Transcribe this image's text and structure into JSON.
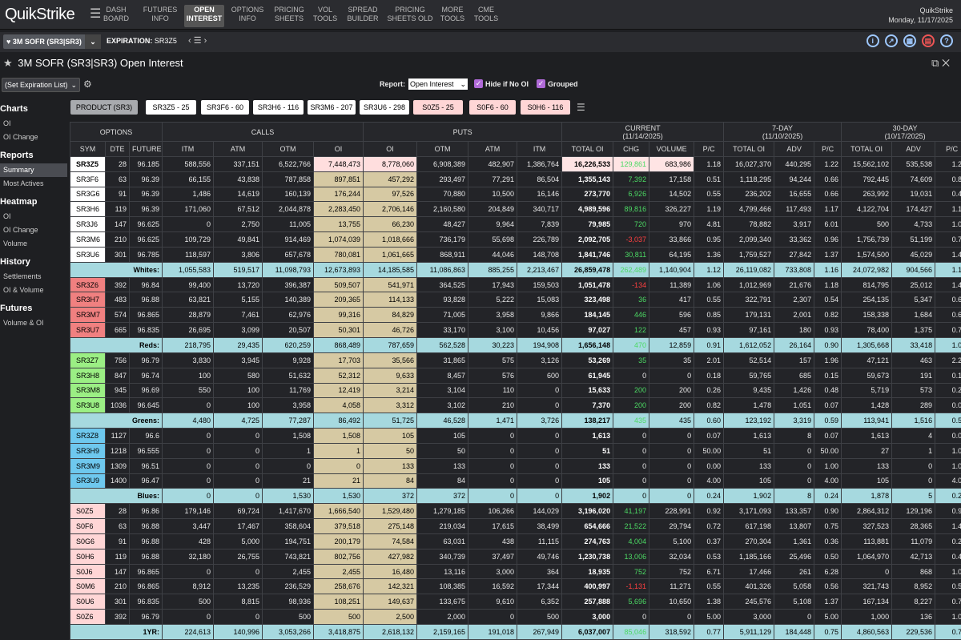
{
  "app": {
    "logo": "QuikStrike",
    "brand": "QuikStrike",
    "date": "Monday, 11/17/2025"
  },
  "nav": [
    {
      "id": "dash",
      "l1": "DASH",
      "l2": "BOARD"
    },
    {
      "id": "futures",
      "l1": "FUTURES",
      "l2": "INFO"
    },
    {
      "id": "oi",
      "l1": "OPEN",
      "l2": "INTEREST",
      "active": true
    },
    {
      "id": "options",
      "l1": "OPTIONS",
      "l2": "INFO"
    },
    {
      "id": "pricing",
      "l1": "PRICING",
      "l2": "SHEETS"
    },
    {
      "id": "vol",
      "l1": "VOL",
      "l2": "TOOLS"
    },
    {
      "id": "spread",
      "l1": "SPREAD",
      "l2": "BUILDER"
    },
    {
      "id": "pricingold",
      "l1": "PRICING",
      "l2": "SHEETS OLD"
    },
    {
      "id": "more",
      "l1": "MORE",
      "l2": "TOOLS"
    },
    {
      "id": "cme",
      "l1": "CME",
      "l2": "TOOLS"
    }
  ],
  "product": "3M SOFR (SR3|SR3)",
  "expiration_label": "EXPIRATION:",
  "expiration_value": "SR3Z5",
  "title": "3M SOFR (SR3|SR3) Open Interest",
  "controls": {
    "set_exp": "(Set Expiration List)",
    "report_label": "Report:",
    "report_value": "Open Interest",
    "hide_label": "Hide if No OI",
    "grouped_label": "Grouped"
  },
  "sidebar": [
    {
      "head": "Charts",
      "items": [
        "OI",
        "OI Change"
      ]
    },
    {
      "head": "Reports",
      "items": [
        "Summary",
        "Most Actives"
      ],
      "active": "Summary"
    },
    {
      "head": "Heatmap",
      "items": [
        "OI",
        "OI Change",
        "Volume"
      ]
    },
    {
      "head": "History",
      "items": [
        "Settlements",
        "OI & Volume"
      ]
    },
    {
      "head": "Futures",
      "items": [
        "Volume & OI"
      ]
    }
  ],
  "chips": [
    {
      "label": "PRODUCT (SR3)",
      "bg": "#a8aaae"
    },
    {
      "label": "SR3Z5 - 25",
      "bg": "#ffffff"
    },
    {
      "label": "SR3F6 - 60",
      "bg": "#ffffff"
    },
    {
      "label": "SR3H6 - 116",
      "bg": "#ffffff"
    },
    {
      "label": "SR3M6 - 207",
      "bg": "#ffffff"
    },
    {
      "label": "SR3U6 - 298",
      "bg": "#ffffff"
    },
    {
      "label": "S0Z5 - 25",
      "bg": "#ffd6d6"
    },
    {
      "label": "S0F6 - 60",
      "bg": "#ffd6d6"
    },
    {
      "label": "S0H6 - 116",
      "bg": "#ffd6d6"
    }
  ],
  "table": {
    "groups": {
      "options": "OPTIONS",
      "calls": "CALLS",
      "puts": "PUTS",
      "current": "CURRENT",
      "current_date": "(11/14/2025)",
      "d7": "7-DAY",
      "d7_date": "(11/10/2025)",
      "d30": "30-DAY",
      "d30_date": "(10/17/2025)"
    },
    "cols": [
      "SYM",
      "DTE",
      "FUTURE",
      "ITM",
      "ATM",
      "OTM",
      "OI",
      "OI",
      "OTM",
      "ATM",
      "ITM",
      "TOTAL OI",
      "CHG",
      "VOLUME",
      "P/C",
      "TOTAL OI",
      "ADV",
      "P/C",
      "TOTAL OI",
      "ADV",
      "P/C"
    ],
    "rows": [
      {
        "t": "d",
        "c": "#ffffff",
        "v": [
          "SR3Z5",
          "28",
          "96.185",
          "588,556",
          "337,151",
          "6,522,766",
          "7,448,473",
          "8,778,060",
          "6,908,389",
          "482,907",
          "1,386,764",
          "16,226,533",
          "129,861",
          "683,986",
          "1.18",
          "16,027,370",
          "440,295",
          "1.22",
          "15,562,102",
          "535,538",
          "1.21"
        ],
        "first": true
      },
      {
        "t": "d",
        "c": "#ffffff",
        "v": [
          "SR3F6",
          "63",
          "96.39",
          "66,155",
          "43,838",
          "787,858",
          "897,851",
          "457,292",
          "293,497",
          "77,291",
          "86,504",
          "1,355,143",
          "7,392",
          "17,158",
          "0.51",
          "1,118,295",
          "94,244",
          "0.66",
          "792,445",
          "74,609",
          "0.88"
        ]
      },
      {
        "t": "d",
        "c": "#ffffff",
        "v": [
          "SR3G6",
          "91",
          "96.39",
          "1,486",
          "14,619",
          "160,139",
          "176,244",
          "97,526",
          "70,880",
          "10,500",
          "16,146",
          "273,770",
          "6,926",
          "14,502",
          "0.55",
          "236,202",
          "16,655",
          "0.66",
          "263,992",
          "19,031",
          "0.47"
        ]
      },
      {
        "t": "d",
        "c": "#ffffff",
        "v": [
          "SR3H6",
          "119",
          "96.39",
          "171,060",
          "67,512",
          "2,044,878",
          "2,283,450",
          "2,706,146",
          "2,160,580",
          "204,849",
          "340,717",
          "4,989,596",
          "89,816",
          "326,227",
          "1.19",
          "4,799,466",
          "117,493",
          "1.17",
          "4,122,704",
          "174,427",
          "1.16"
        ]
      },
      {
        "t": "d",
        "c": "#ffffff",
        "v": [
          "SR3J6",
          "147",
          "96.625",
          "0",
          "2,750",
          "11,005",
          "13,755",
          "66,230",
          "48,427",
          "9,964",
          "7,839",
          "79,985",
          "720",
          "970",
          "4.81",
          "78,882",
          "3,917",
          "6.01",
          "500",
          "4,733",
          "1.00"
        ]
      },
      {
        "t": "d",
        "c": "#ffffff",
        "v": [
          "SR3M6",
          "210",
          "96.625",
          "109,729",
          "49,841",
          "914,469",
          "1,074,039",
          "1,018,666",
          "736,179",
          "55,698",
          "226,789",
          "2,092,705",
          "-3,037",
          "33,866",
          "0.95",
          "2,099,340",
          "33,362",
          "0.96",
          "1,756,739",
          "51,199",
          "0.74"
        ]
      },
      {
        "t": "d",
        "c": "#ffffff",
        "v": [
          "SR3U6",
          "301",
          "96.785",
          "118,597",
          "3,806",
          "657,678",
          "780,081",
          "1,061,665",
          "868,911",
          "44,046",
          "148,708",
          "1,841,746",
          "30,811",
          "64,195",
          "1.36",
          "1,759,527",
          "27,842",
          "1.37",
          "1,574,500",
          "45,029",
          "1.42"
        ]
      },
      {
        "t": "s",
        "label": "Whites:",
        "v": [
          "1,055,583",
          "519,517",
          "11,098,793",
          "12,673,893",
          "14,185,585",
          "11,086,863",
          "885,255",
          "2,213,467",
          "26,859,478",
          "262,489",
          "1,140,904",
          "1.12",
          "26,119,082",
          "733,808",
          "1.16",
          "24,072,982",
          "904,566",
          "1.15"
        ]
      },
      {
        "t": "d",
        "c": "#f08080",
        "v": [
          "SR3Z6",
          "392",
          "96.84",
          "99,400",
          "13,720",
          "396,387",
          "509,507",
          "541,971",
          "364,525",
          "17,943",
          "159,503",
          "1,051,478",
          "-134",
          "11,389",
          "1.06",
          "1,012,969",
          "21,676",
          "1.18",
          "814,795",
          "25,012",
          "1.40"
        ]
      },
      {
        "t": "d",
        "c": "#f08080",
        "v": [
          "SR3H7",
          "483",
          "96.88",
          "63,821",
          "5,155",
          "140,389",
          "209,365",
          "114,133",
          "93,828",
          "5,222",
          "15,083",
          "323,498",
          "36",
          "417",
          "0.55",
          "322,791",
          "2,307",
          "0.54",
          "254,135",
          "5,347",
          "0.68"
        ]
      },
      {
        "t": "d",
        "c": "#f08080",
        "v": [
          "SR3M7",
          "574",
          "96.865",
          "28,879",
          "7,461",
          "62,976",
          "99,316",
          "84,829",
          "71,005",
          "3,958",
          "9,866",
          "184,145",
          "446",
          "596",
          "0.85",
          "179,131",
          "2,001",
          "0.82",
          "158,338",
          "1,684",
          "0.68"
        ]
      },
      {
        "t": "d",
        "c": "#f08080",
        "v": [
          "SR3U7",
          "665",
          "96.835",
          "26,695",
          "3,099",
          "20,507",
          "50,301",
          "46,726",
          "33,170",
          "3,100",
          "10,456",
          "97,027",
          "122",
          "457",
          "0.93",
          "97,161",
          "180",
          "0.93",
          "78,400",
          "1,375",
          "0.77"
        ]
      },
      {
        "t": "s",
        "label": "Reds:",
        "v": [
          "218,795",
          "29,435",
          "620,259",
          "868,489",
          "787,659",
          "562,528",
          "30,223",
          "194,908",
          "1,656,148",
          "470",
          "12,859",
          "0.91",
          "1,612,052",
          "26,164",
          "0.90",
          "1,305,668",
          "33,418",
          "1.07"
        ]
      },
      {
        "t": "d",
        "c": "#9bef84",
        "v": [
          "SR3Z7",
          "756",
          "96.79",
          "3,830",
          "3,945",
          "9,928",
          "17,703",
          "35,566",
          "31,865",
          "575",
          "3,126",
          "53,269",
          "35",
          "35",
          "2.01",
          "52,514",
          "157",
          "1.96",
          "47,121",
          "463",
          "2.24"
        ]
      },
      {
        "t": "d",
        "c": "#9bef84",
        "v": [
          "SR3H8",
          "847",
          "96.74",
          "100",
          "580",
          "51,632",
          "52,312",
          "9,633",
          "8,457",
          "576",
          "600",
          "61,945",
          "0",
          "0",
          "0.18",
          "59,765",
          "685",
          "0.15",
          "59,673",
          "191",
          "0.15"
        ]
      },
      {
        "t": "d",
        "c": "#9bef84",
        "v": [
          "SR3M8",
          "945",
          "96.69",
          "550",
          "100",
          "11,769",
          "12,419",
          "3,214",
          "3,104",
          "110",
          "0",
          "15,633",
          "200",
          "200",
          "0.26",
          "9,435",
          "1,426",
          "0.48",
          "5,719",
          "573",
          "0.23"
        ]
      },
      {
        "t": "d",
        "c": "#9bef84",
        "v": [
          "SR3U8",
          "1036",
          "96.645",
          "0",
          "100",
          "3,958",
          "4,058",
          "3,312",
          "3,102",
          "210",
          "0",
          "7,370",
          "200",
          "200",
          "0.82",
          "1,478",
          "1,051",
          "0.07",
          "1,428",
          "289",
          "0.08"
        ]
      },
      {
        "t": "s",
        "label": "Greens:",
        "v": [
          "4,480",
          "4,725",
          "77,287",
          "86,492",
          "51,725",
          "46,528",
          "1,471",
          "3,726",
          "138,217",
          "435",
          "435",
          "0.60",
          "123,192",
          "3,319",
          "0.59",
          "113,941",
          "1,516",
          "0.57"
        ]
      },
      {
        "t": "d",
        "c": "#6ec8ee",
        "v": [
          "SR3Z8",
          "1127",
          "96.6",
          "0",
          "0",
          "1,508",
          "1,508",
          "105",
          "105",
          "0",
          "0",
          "1,613",
          "0",
          "0",
          "0.07",
          "1,613",
          "8",
          "0.07",
          "1,613",
          "4",
          "0.07"
        ]
      },
      {
        "t": "d",
        "c": "#6ec8ee",
        "v": [
          "SR3H9",
          "1218",
          "96.555",
          "0",
          "0",
          "1",
          "1",
          "50",
          "50",
          "0",
          "0",
          "51",
          "0",
          "0",
          "50.00",
          "51",
          "0",
          "50.00",
          "27",
          "1",
          "1.00"
        ]
      },
      {
        "t": "d",
        "c": "#6ec8ee",
        "v": [
          "SR3M9",
          "1309",
          "96.51",
          "0",
          "0",
          "0",
          "0",
          "133",
          "133",
          "0",
          "0",
          "133",
          "0",
          "0",
          "0.00",
          "133",
          "0",
          "1.00",
          "133",
          "0",
          "1.00"
        ]
      },
      {
        "t": "d",
        "c": "#6ec8ee",
        "v": [
          "SR3U9",
          "1400",
          "96.47",
          "0",
          "0",
          "21",
          "21",
          "84",
          "84",
          "0",
          "0",
          "105",
          "0",
          "0",
          "4.00",
          "105",
          "0",
          "4.00",
          "105",
          "0",
          "4.00"
        ]
      },
      {
        "t": "s",
        "label": "Blues:",
        "v": [
          "0",
          "0",
          "1,530",
          "1,530",
          "372",
          "372",
          "0",
          "0",
          "1,902",
          "0",
          "0",
          "0.24",
          "1,902",
          "8",
          "0.24",
          "1,878",
          "5",
          "0.23"
        ]
      },
      {
        "t": "d",
        "c": "#ffd6d6",
        "v": [
          "S0Z5",
          "28",
          "96.86",
          "179,146",
          "69,724",
          "1,417,670",
          "1,666,540",
          "1,529,480",
          "1,279,185",
          "106,266",
          "144,029",
          "3,196,020",
          "41,197",
          "228,991",
          "0.92",
          "3,171,093",
          "133,357",
          "0.90",
          "2,864,312",
          "129,196",
          "0.95"
        ]
      },
      {
        "t": "d",
        "c": "#ffd6d6",
        "v": [
          "S0F6",
          "63",
          "96.88",
          "3,447",
          "17,467",
          "358,604",
          "379,518",
          "275,148",
          "219,034",
          "17,615",
          "38,499",
          "654,666",
          "21,522",
          "29,794",
          "0.72",
          "617,198",
          "13,807",
          "0.75",
          "327,523",
          "28,365",
          "1.44"
        ]
      },
      {
        "t": "d",
        "c": "#ffd6d6",
        "v": [
          "S0G6",
          "91",
          "96.88",
          "428",
          "5,000",
          "194,751",
          "200,179",
          "74,584",
          "63,031",
          "438",
          "11,115",
          "274,763",
          "4,004",
          "5,100",
          "0.37",
          "270,304",
          "1,361",
          "0.36",
          "113,881",
          "11,079",
          "0.28"
        ]
      },
      {
        "t": "d",
        "c": "#ffd6d6",
        "v": [
          "S0H6",
          "119",
          "96.88",
          "32,180",
          "26,755",
          "743,821",
          "802,756",
          "427,982",
          "340,739",
          "37,497",
          "49,746",
          "1,230,738",
          "13,006",
          "32,034",
          "0.53",
          "1,185,166",
          "25,496",
          "0.50",
          "1,064,970",
          "42,713",
          "0.40"
        ]
      },
      {
        "t": "d",
        "c": "#ffd6d6",
        "v": [
          "S0J6",
          "147",
          "96.865",
          "0",
          "0",
          "2,455",
          "2,455",
          "16,480",
          "13,116",
          "3,000",
          "364",
          "18,935",
          "752",
          "752",
          "6.71",
          "17,466",
          "261",
          "6.28",
          "0",
          "868",
          "1.00"
        ]
      },
      {
        "t": "d",
        "c": "#ffd6d6",
        "v": [
          "S0M6",
          "210",
          "96.865",
          "8,912",
          "13,235",
          "236,529",
          "258,676",
          "142,321",
          "108,385",
          "16,592",
          "17,344",
          "400,997",
          "-1,131",
          "11,271",
          "0.55",
          "401,326",
          "5,058",
          "0.56",
          "321,743",
          "8,952",
          "0.52"
        ]
      },
      {
        "t": "d",
        "c": "#ffd6d6",
        "v": [
          "S0U6",
          "301",
          "96.835",
          "500",
          "8,815",
          "98,936",
          "108,251",
          "149,637",
          "133,675",
          "9,610",
          "6,352",
          "257,888",
          "5,696",
          "10,650",
          "1.38",
          "245,576",
          "5,108",
          "1.37",
          "167,134",
          "8,227",
          "0.73"
        ]
      },
      {
        "t": "d",
        "c": "#ffd6d6",
        "v": [
          "S0Z6",
          "392",
          "96.79",
          "0",
          "0",
          "500",
          "500",
          "2,500",
          "2,000",
          "0",
          "500",
          "3,000",
          "0",
          "0",
          "5.00",
          "3,000",
          "0",
          "5.00",
          "1,000",
          "136",
          "1.00"
        ]
      },
      {
        "t": "s",
        "label": "1YR:",
        "v": [
          "224,613",
          "140,996",
          "3,053,266",
          "3,418,875",
          "2,618,132",
          "2,159,165",
          "191,018",
          "267,949",
          "6,037,007",
          "85,046",
          "318,592",
          "0.77",
          "5,911,129",
          "184,448",
          "0.75",
          "4,860,563",
          "229,536",
          "0.76"
        ]
      }
    ]
  }
}
